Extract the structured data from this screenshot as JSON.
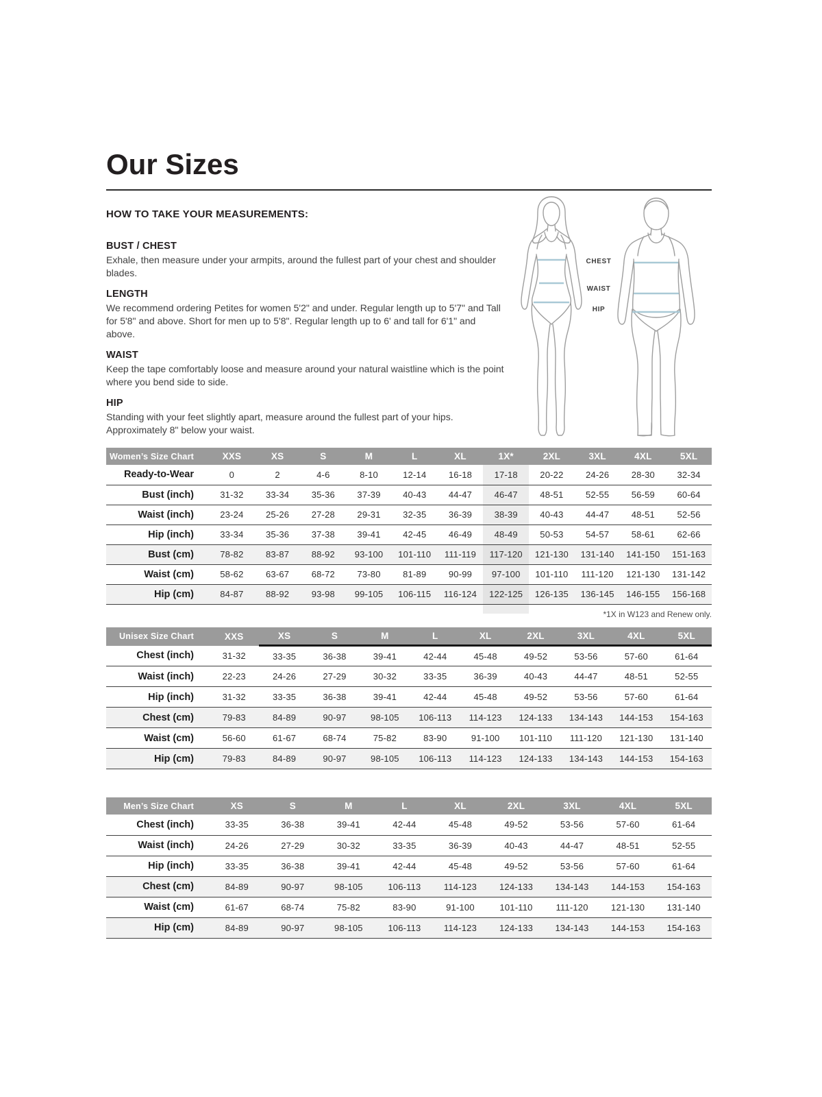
{
  "page": {
    "title": "Our Sizes",
    "intro_heading": "HOW TO TAKE YOUR MEASUREMENTS:",
    "sections": [
      {
        "heading": "BUST / CHEST",
        "body": "Exhale, then measure under your armpits, around the fullest part of your chest and shoulder blades."
      },
      {
        "heading": "LENGTH",
        "body": "We recommend ordering Petites for women 5'2\" and under. Regular length up to 5'7\" and Tall for 5'8\" and above. Short for men up to 5'8\". Regular length up to 6' and tall for 6'1\" and above."
      },
      {
        "heading": "WAIST",
        "body": "Keep the tape comfortably loose and measure around your natural waistline which is the point where you bend side to side."
      },
      {
        "heading": "HIP",
        "body": "Standing with your feet slightly apart, measure around the fullest part of your hips. Approximately 8\" below your waist."
      }
    ],
    "figure_labels": {
      "chest": "CHEST",
      "waist": "WAIST",
      "hip": "HIP"
    },
    "footnote": "*1X in W123 and Renew only."
  },
  "colors": {
    "header_bg": "#9b9b9b",
    "header_text": "#ffffff",
    "shaded_row": "#f1f1f1",
    "highlight": "#ececec",
    "highlight_on_shaded": "#e3e3e3",
    "rule": "#3f3f3f",
    "title_text": "#231f20",
    "body_text": "#3a3a3a",
    "measure_line": "#a9c9d6",
    "silhouette": "#9e9e9e"
  },
  "tables": [
    {
      "title": "Women’s Size Chart",
      "columns": [
        "XXS",
        "XS",
        "S",
        "M",
        "L",
        "XL",
        "1X*",
        "2XL",
        "3XL",
        "4XL",
        "5XL"
      ],
      "highlight_col": 6,
      "rows": [
        {
          "label": "Ready-to-Wear",
          "values": [
            "0",
            "2",
            "4-6",
            "8-10",
            "12-14",
            "16-18",
            "17-18",
            "20-22",
            "24-26",
            "28-30",
            "32-34"
          ]
        },
        {
          "label": "Bust (inch)",
          "values": [
            "31-32",
            "33-34",
            "35-36",
            "37-39",
            "40-43",
            "44-47",
            "46-47",
            "48-51",
            "52-55",
            "56-59",
            "60-64"
          ]
        },
        {
          "label": "Waist (inch)",
          "values": [
            "23-24",
            "25-26",
            "27-28",
            "29-31",
            "32-35",
            "36-39",
            "38-39",
            "40-43",
            "44-47",
            "48-51",
            "52-56"
          ]
        },
        {
          "label": "Hip (inch)",
          "values": [
            "33-34",
            "35-36",
            "37-38",
            "39-41",
            "42-45",
            "46-49",
            "48-49",
            "50-53",
            "54-57",
            "58-61",
            "62-66"
          ]
        },
        {
          "label": "Bust (cm)",
          "shaded": true,
          "values": [
            "78-82",
            "83-87",
            "88-92",
            "93-100",
            "101-110",
            "111-119",
            "117-120",
            "121-130",
            "131-140",
            "141-150",
            "151-163"
          ]
        },
        {
          "label": "Waist (cm)",
          "values": [
            "58-62",
            "63-67",
            "68-72",
            "73-80",
            "81-89",
            "90-99",
            "97-100",
            "101-110",
            "111-120",
            "121-130",
            "131-142"
          ]
        },
        {
          "label": "Hip (cm)",
          "shaded": true,
          "values": [
            "84-87",
            "88-92",
            "93-98",
            "99-105",
            "106-115",
            "116-124",
            "122-125",
            "126-135",
            "136-145",
            "146-155",
            "156-168"
          ]
        }
      ]
    },
    {
      "title": "Unisex Size Chart",
      "columns": [
        "XXS",
        "XS",
        "S",
        "M",
        "L",
        "XL",
        "2XL",
        "3XL",
        "4XL",
        "5XL"
      ],
      "header_underline_from": 1,
      "rows": [
        {
          "label": "Chest (inch)",
          "values": [
            "31-32",
            "33-35",
            "36-38",
            "39-41",
            "42-44",
            "45-48",
            "49-52",
            "53-56",
            "57-60",
            "61-64"
          ]
        },
        {
          "label": "Waist (inch)",
          "values": [
            "22-23",
            "24-26",
            "27-29",
            "30-32",
            "33-35",
            "36-39",
            "40-43",
            "44-47",
            "48-51",
            "52-55"
          ]
        },
        {
          "label": "Hip (inch)",
          "values": [
            "31-32",
            "33-35",
            "36-38",
            "39-41",
            "42-44",
            "45-48",
            "49-52",
            "53-56",
            "57-60",
            "61-64"
          ]
        },
        {
          "label": "Chest (cm)",
          "shaded": true,
          "values": [
            "79-83",
            "84-89",
            "90-97",
            "98-105",
            "106-113",
            "114-123",
            "124-133",
            "134-143",
            "144-153",
            "154-163"
          ]
        },
        {
          "label": "Waist (cm)",
          "values": [
            "56-60",
            "61-67",
            "68-74",
            "75-82",
            "83-90",
            "91-100",
            "101-110",
            "111-120",
            "121-130",
            "131-140"
          ]
        },
        {
          "label": "Hip (cm)",
          "shaded": true,
          "values": [
            "79-83",
            "84-89",
            "90-97",
            "98-105",
            "106-113",
            "114-123",
            "124-133",
            "134-143",
            "144-153",
            "154-163"
          ]
        }
      ]
    },
    {
      "title": "Men’s Size Chart",
      "columns": [
        "XS",
        "S",
        "M",
        "L",
        "XL",
        "2XL",
        "3XL",
        "4XL",
        "5XL"
      ],
      "rows": [
        {
          "label": "Chest (inch)",
          "values": [
            "33-35",
            "36-38",
            "39-41",
            "42-44",
            "45-48",
            "49-52",
            "53-56",
            "57-60",
            "61-64"
          ]
        },
        {
          "label": "Waist (inch)",
          "values": [
            "24-26",
            "27-29",
            "30-32",
            "33-35",
            "36-39",
            "40-43",
            "44-47",
            "48-51",
            "52-55"
          ]
        },
        {
          "label": "Hip (inch)",
          "values": [
            "33-35",
            "36-38",
            "39-41",
            "42-44",
            "45-48",
            "49-52",
            "53-56",
            "57-60",
            "61-64"
          ]
        },
        {
          "label": "Chest (cm)",
          "shaded": true,
          "values": [
            "84-89",
            "90-97",
            "98-105",
            "106-113",
            "114-123",
            "124-133",
            "134-143",
            "144-153",
            "154-163"
          ]
        },
        {
          "label": "Waist (cm)",
          "values": [
            "61-67",
            "68-74",
            "75-82",
            "83-90",
            "91-100",
            "101-110",
            "111-120",
            "121-130",
            "131-140"
          ]
        },
        {
          "label": "Hip (cm)",
          "shaded": true,
          "values": [
            "84-89",
            "90-97",
            "98-105",
            "106-113",
            "114-123",
            "124-133",
            "134-143",
            "144-153",
            "154-163"
          ]
        }
      ]
    }
  ]
}
